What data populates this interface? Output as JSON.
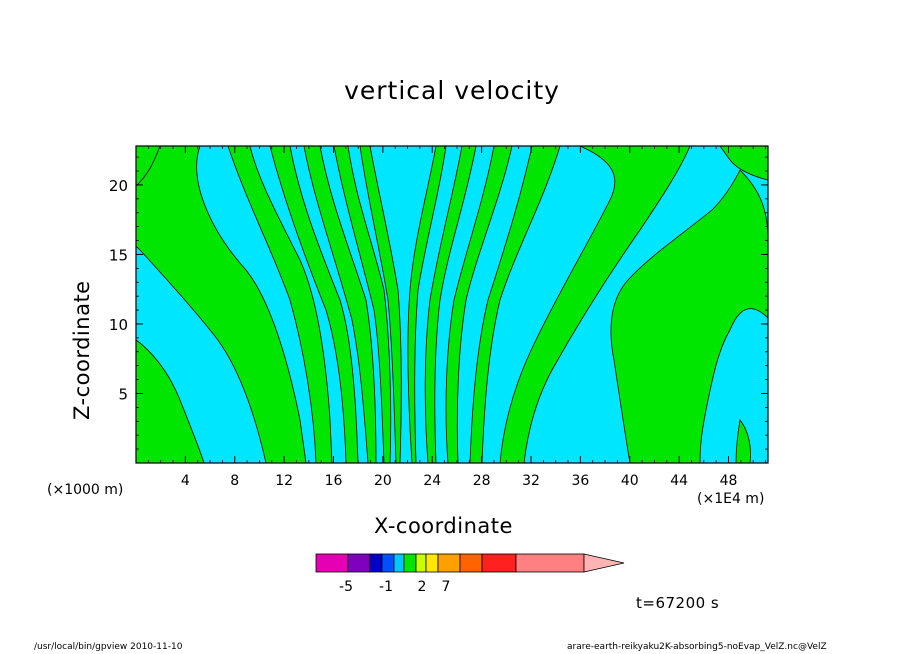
{
  "chart_data": {
    "type": "contour",
    "title": "vertical velocity",
    "xlabel": "X-coordinate",
    "ylabel": "Z-coordinate",
    "x_unit_label": "(×1E4 m)",
    "y_unit_label": "(×1000 m)",
    "xlim": [
      0,
      51.2
    ],
    "ylim": [
      0,
      22.8
    ],
    "x_ticks": [
      4,
      8,
      12,
      16,
      20,
      24,
      28,
      32,
      36,
      40,
      44,
      48
    ],
    "y_ticks": [
      5,
      10,
      15,
      20
    ],
    "fill_colors": {
      "negative": "#00e6ff",
      "positive": "#00e600"
    },
    "colorbar": {
      "colors": [
        "#e600b4",
        "#8000c0",
        "#0000c8",
        "#0050ff",
        "#00c8ff",
        "#00e600",
        "#c8ff00",
        "#ffe600",
        "#ffa000",
        "#ff6400",
        "#ff2020",
        "#ff8080",
        "#ffb4b4"
      ],
      "tick_labels": [
        "-5",
        "-1",
        "2",
        "7"
      ]
    },
    "time_label": "t=67200 s"
  },
  "footer": {
    "left": "/usr/local/bin/gpview  2010-11-10",
    "right": "arare-earth-reikyaku2K-absorbing5-noEvap_VelZ.nc@VelZ"
  }
}
